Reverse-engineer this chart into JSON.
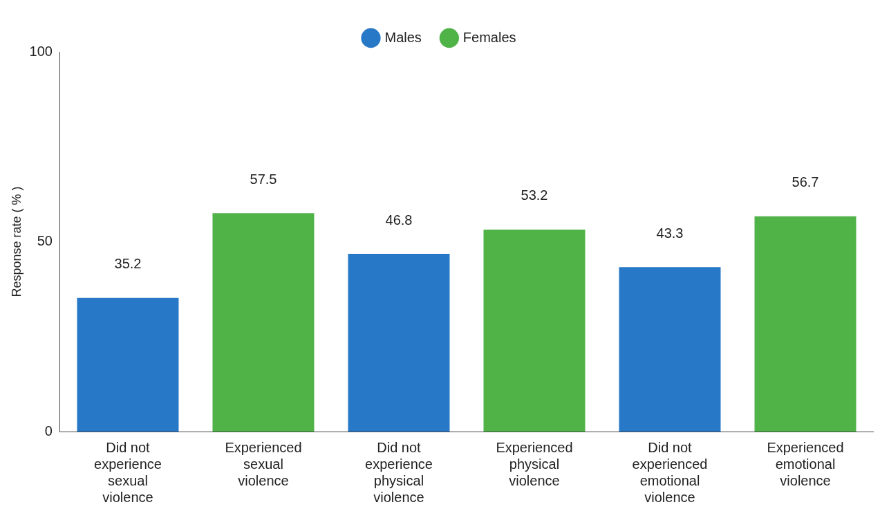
{
  "chart_data": {
    "type": "bar",
    "categories": [
      "Did not experience sexual violence",
      "Experienced sexual violence",
      "Did not experience physical violence",
      "Experienced physical violence",
      "Did not experienced emotional violence",
      "Experienced emotional violence"
    ],
    "series": [
      {
        "name": "Males",
        "color": "#2878c8",
        "values": [
          35.2,
          null,
          46.8,
          null,
          43.3,
          null
        ]
      },
      {
        "name": "Females",
        "color": "#4fb348",
        "values": [
          null,
          57.5,
          null,
          53.2,
          null,
          56.7
        ]
      }
    ],
    "ylabel": "Response rate ( % )",
    "ylim": [
      0,
      100
    ],
    "yticks": [
      0,
      50,
      100
    ],
    "data_labels": true,
    "grid": false,
    "legend": "top",
    "marker": "circle"
  }
}
